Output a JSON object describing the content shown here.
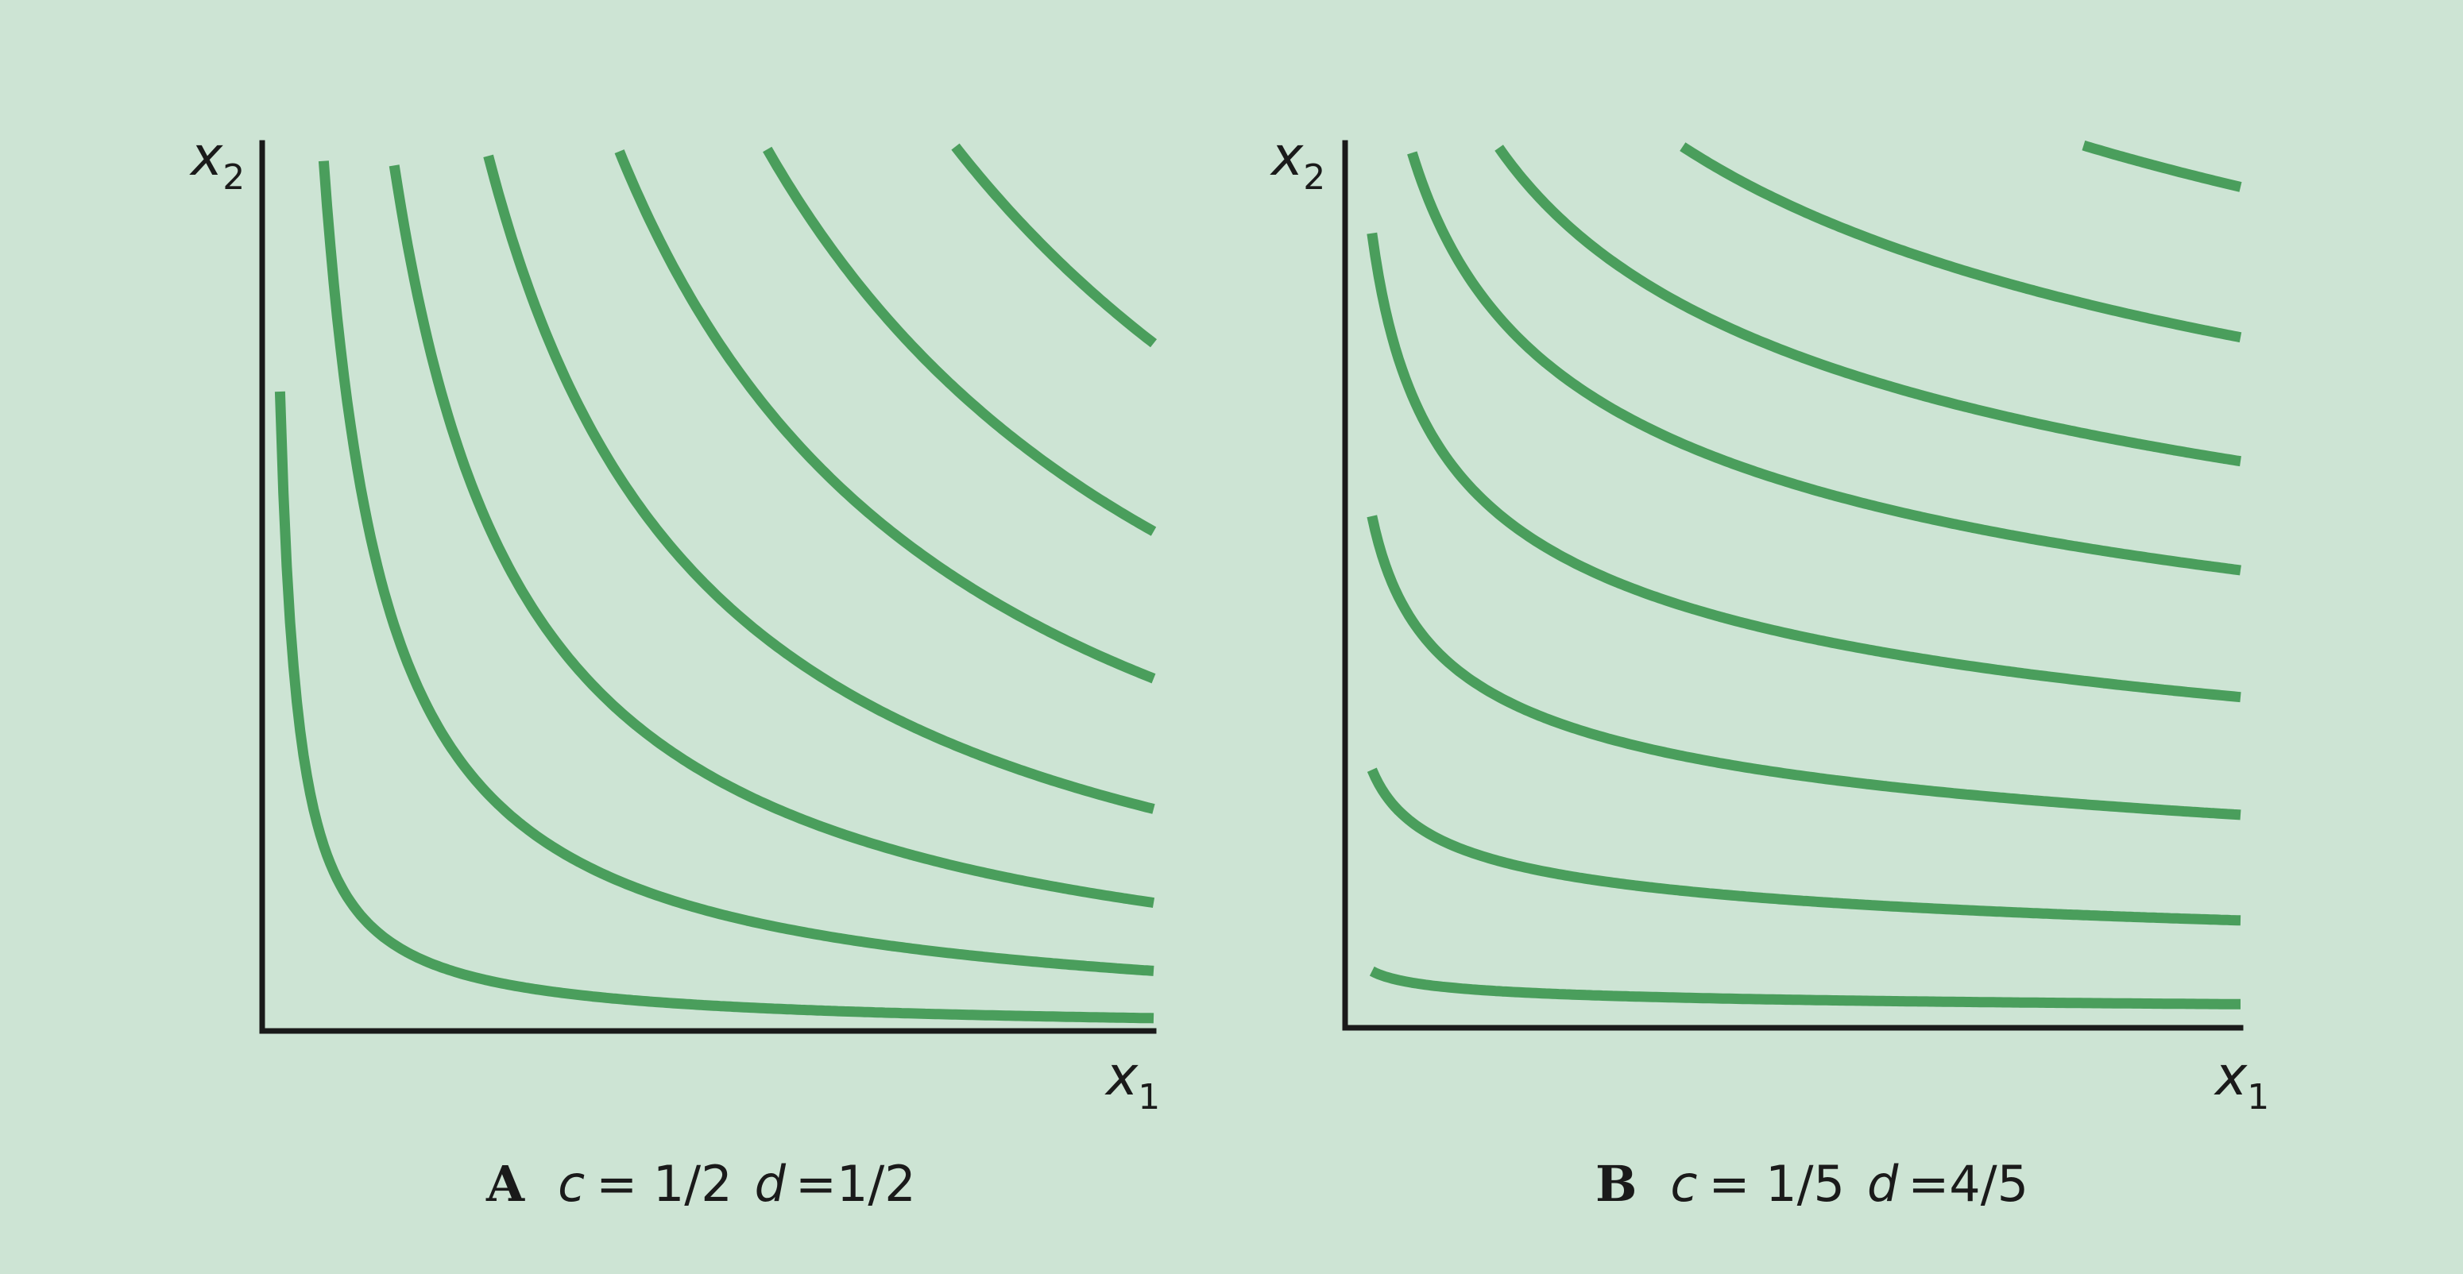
{
  "chart_data": [
    {
      "type": "line",
      "panel": "A",
      "caption": {
        "letter": "A",
        "c_sym": "c",
        "c_val": "= 1/2",
        "d_sym": "d",
        "d_val": "=1/2"
      },
      "xlabel": {
        "var": "x",
        "sub": "1"
      },
      "ylabel": {
        "var": "x",
        "sub": "2"
      },
      "exponents": {
        "c": 0.5,
        "d": 0.5
      },
      "levels": [
        0.12,
        0.26,
        0.38,
        0.5,
        0.63,
        0.75,
        0.88,
        1.01
      ],
      "grid": false,
      "legend": "none"
    },
    {
      "type": "line",
      "panel": "B",
      "caption": {
        "letter": "B",
        "c_sym": "c",
        "c_val": "= 1/5",
        "d_sym": "d",
        "d_val": "=4/5"
      },
      "xlabel": {
        "var": "x",
        "sub": "1"
      },
      "ylabel": {
        "var": "x",
        "sub": "2"
      },
      "exponents": {
        "c": 0.2,
        "d": 0.8
      },
      "levels": [
        0.055,
        0.185,
        0.32,
        0.455,
        0.59,
        0.7,
        0.82,
        0.96
      ],
      "grid": false,
      "legend": "none"
    }
  ],
  "colors": {
    "background": "#cde4d4",
    "curve": "#4a9e5c",
    "axis": "#1a1a1a"
  }
}
